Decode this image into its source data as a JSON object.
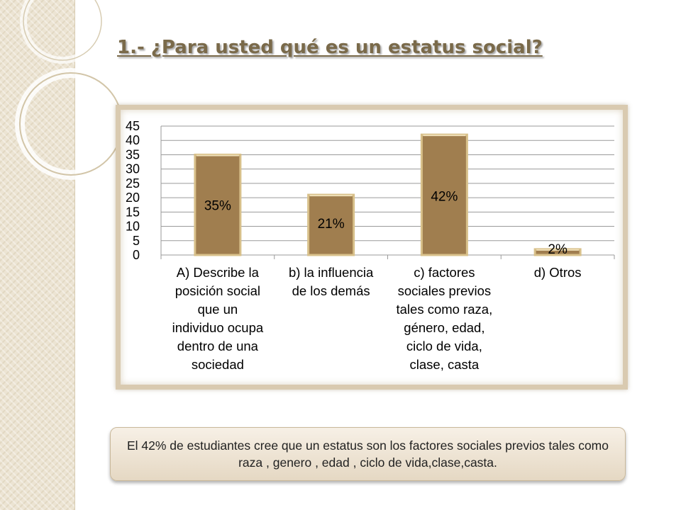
{
  "slide": {
    "title": "1.- ¿Para usted qué es un estatus social?",
    "summary": "El 42% de estudiantes cree que un estatus son los factores sociales previos tales como raza , genero , edad , ciclo de vida,clase,casta."
  },
  "colors": {
    "bar_fill": "#a07e4f",
    "bar_edge": "#d8c08a",
    "title": "#7a6a4a",
    "frame": "#d9cab0"
  },
  "chart_data": {
    "type": "bar",
    "title": "",
    "xlabel": "",
    "ylabel": "",
    "ylim": [
      0,
      45
    ],
    "yticks": [
      0,
      5,
      10,
      15,
      20,
      25,
      30,
      35,
      40,
      45
    ],
    "grid": true,
    "categories": [
      "A) Describe la posición social que un individuo ocupa dentro de una sociedad",
      "b) la influencia de los demás",
      "c) factores sociales previos tales como raza, género, edad, ciclo de vida, clase, casta",
      "d) Otros"
    ],
    "category_lines": [
      [
        "A) Describe la",
        "posición social",
        "que un",
        "individuo ocupa",
        "dentro de una",
        "sociedad"
      ],
      [
        "b) la influencia",
        "de los demás"
      ],
      [
        "c) factores",
        "sociales previos",
        "tales como raza,",
        "género, edad,",
        "ciclo de vida,",
        "clase, casta"
      ],
      [
        "d) Otros"
      ]
    ],
    "values": [
      35,
      21,
      42,
      2
    ],
    "data_labels": [
      "35%",
      "21%",
      "42%",
      "2%"
    ]
  }
}
